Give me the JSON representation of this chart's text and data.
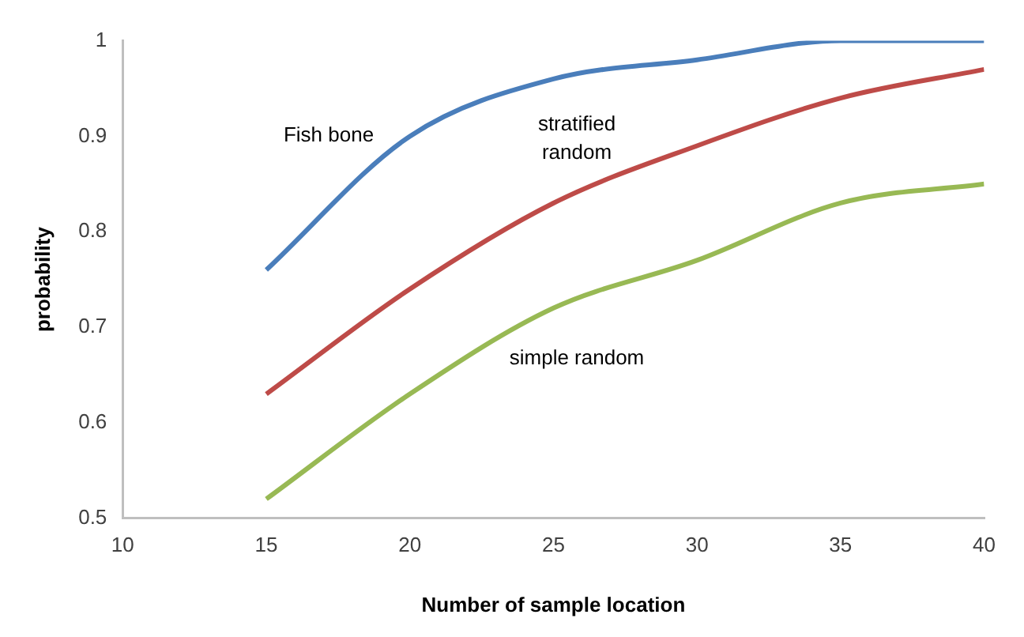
{
  "chart_data": {
    "type": "line",
    "xlabel": "Number of sample location",
    "ylabel": "probability",
    "x": [
      15,
      20,
      25,
      30,
      35,
      40
    ],
    "series": [
      {
        "name": "Fish bone",
        "color": "#4a7ebb",
        "values": [
          0.76,
          0.9,
          0.96,
          0.98,
          1.0,
          1.0
        ]
      },
      {
        "name": "stratified random",
        "color": "#be4b48",
        "values": [
          0.63,
          0.74,
          0.83,
          0.89,
          0.94,
          0.97
        ]
      },
      {
        "name": "simple random",
        "color": "#98b954",
        "values": [
          0.52,
          0.63,
          0.72,
          0.77,
          0.83,
          0.85
        ]
      }
    ],
    "xlim": [
      10,
      40
    ],
    "xticks": [
      10,
      15,
      20,
      25,
      30,
      35,
      40
    ],
    "ylim": [
      0.5,
      1
    ],
    "yticks": [
      0.5,
      0.6,
      0.7,
      0.8,
      0.9,
      1
    ],
    "grid": false,
    "legend": false,
    "marker": "none",
    "line_style": "solid"
  }
}
